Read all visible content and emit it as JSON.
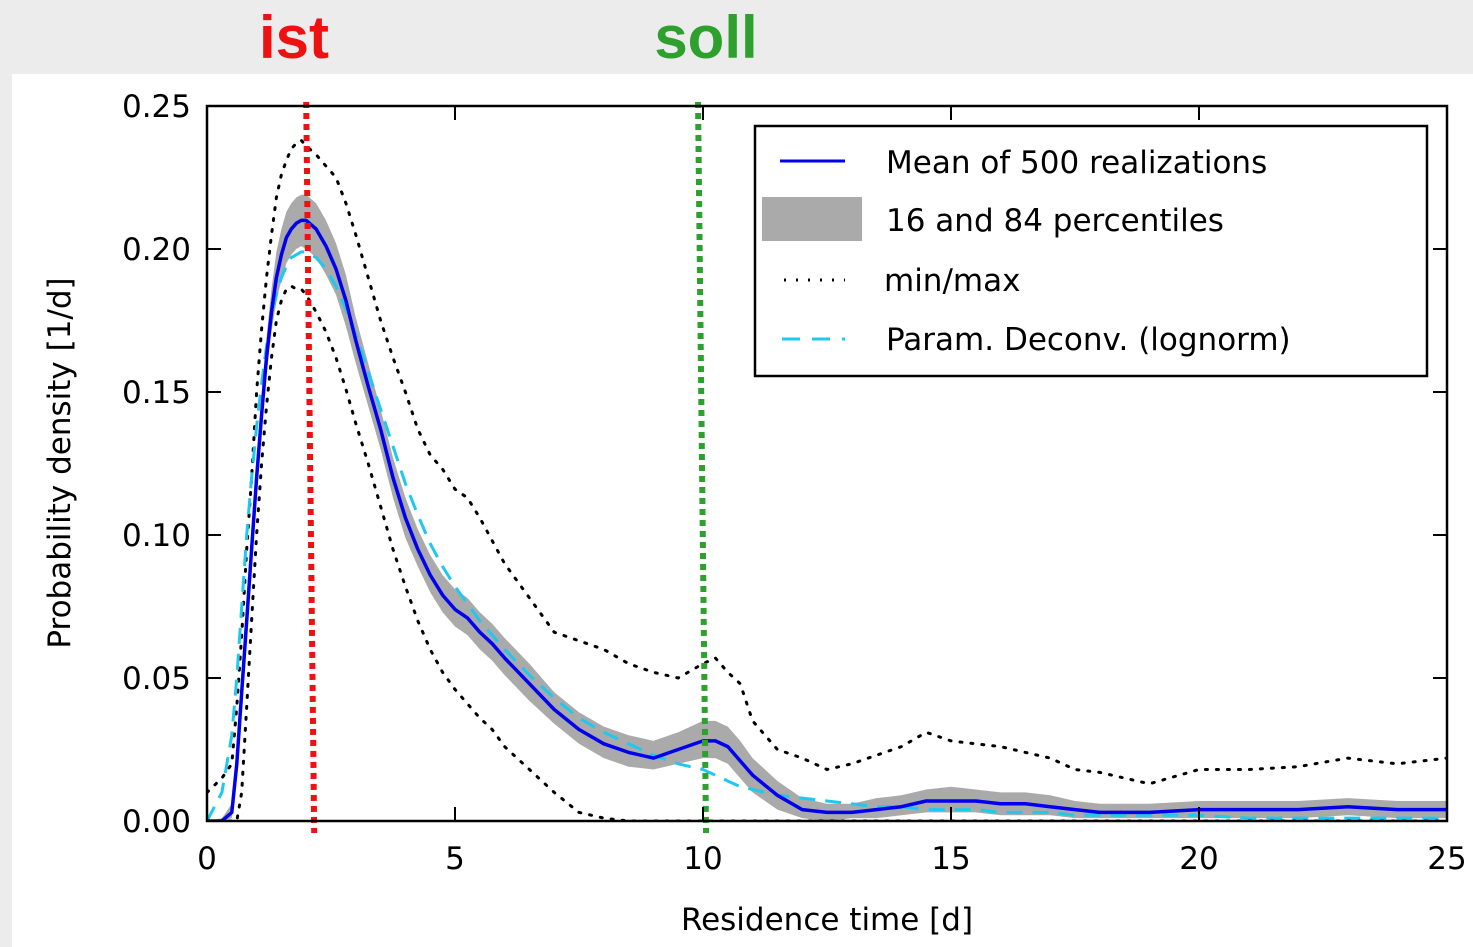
{
  "annotations": [
    {
      "label": "ist",
      "x": 2.0,
      "color": "#ee1111"
    },
    {
      "label": "soll",
      "x": 9.9,
      "color": "#2ea02e"
    }
  ],
  "chart_data": {
    "type": "line",
    "title": "",
    "xlabel": "Residence time [d]",
    "ylabel": "Probability density [1/d]",
    "xlim": [
      0,
      25
    ],
    "ylim": [
      0,
      0.25
    ],
    "x_ticks": [
      0,
      5,
      10,
      15,
      20,
      25
    ],
    "x_tick_labels": [
      "0",
      "5",
      "10",
      "15",
      "20",
      "25"
    ],
    "y_ticks": [
      0,
      0.05,
      0.1,
      0.15,
      0.2,
      0.25
    ],
    "y_tick_labels": [
      "0.00",
      "0.05",
      "0.10",
      "0.15",
      "0.20",
      "0.25"
    ],
    "grid": false,
    "legend_position": "top-right",
    "x": [
      0,
      0.3,
      0.5,
      0.6,
      0.7,
      0.8,
      0.9,
      1.0,
      1.1,
      1.2,
      1.3,
      1.4,
      1.5,
      1.6,
      1.7,
      1.8,
      1.9,
      2.0,
      2.2,
      2.4,
      2.6,
      2.8,
      3.0,
      3.25,
      3.5,
      3.75,
      4.0,
      4.25,
      4.5,
      4.75,
      5.0,
      5.25,
      5.5,
      5.75,
      6.0,
      6.5,
      7.0,
      7.5,
      8.0,
      8.5,
      9.0,
      9.5,
      10.0,
      10.25,
      10.5,
      10.75,
      11.0,
      11.5,
      12.0,
      12.5,
      13.0,
      13.5,
      14.0,
      14.5,
      15.0,
      15.5,
      16.0,
      16.5,
      17.0,
      17.5,
      18.0,
      19.0,
      20.0,
      21.0,
      22.0,
      23.0,
      24.0,
      25.0
    ],
    "series": [
      {
        "name": "Mean of 500 realizations",
        "style": "solid",
        "color": "#0000ee",
        "values": [
          0,
          0,
          0.003,
          0.02,
          0.045,
          0.07,
          0.095,
          0.12,
          0.142,
          0.162,
          0.178,
          0.19,
          0.198,
          0.204,
          0.207,
          0.209,
          0.21,
          0.21,
          0.207,
          0.201,
          0.193,
          0.182,
          0.168,
          0.152,
          0.137,
          0.12,
          0.106,
          0.095,
          0.086,
          0.079,
          0.074,
          0.071,
          0.066,
          0.062,
          0.057,
          0.048,
          0.039,
          0.032,
          0.027,
          0.024,
          0.022,
          0.025,
          0.028,
          0.028,
          0.026,
          0.021,
          0.016,
          0.009,
          0.004,
          0.003,
          0.003,
          0.004,
          0.005,
          0.007,
          0.007,
          0.007,
          0.006,
          0.006,
          0.005,
          0.004,
          0.003,
          0.003,
          0.004,
          0.004,
          0.004,
          0.005,
          0.004,
          0.004
        ]
      },
      {
        "name": "16 and 84 percentiles",
        "style": "band",
        "color": "#aaaaaa",
        "lower": [
          0,
          0,
          0.001,
          0.015,
          0.04,
          0.065,
          0.09,
          0.115,
          0.137,
          0.156,
          0.171,
          0.182,
          0.189,
          0.195,
          0.198,
          0.2,
          0.201,
          0.2,
          0.197,
          0.191,
          0.184,
          0.173,
          0.16,
          0.145,
          0.13,
          0.113,
          0.099,
          0.089,
          0.08,
          0.073,
          0.068,
          0.065,
          0.06,
          0.056,
          0.051,
          0.042,
          0.034,
          0.027,
          0.022,
          0.019,
          0.018,
          0.02,
          0.022,
          0.022,
          0.02,
          0.015,
          0.01,
          0.004,
          0.001,
          0,
          0.001,
          0.001,
          0.002,
          0.003,
          0.003,
          0.003,
          0.002,
          0.002,
          0.002,
          0.001,
          0.001,
          0.001,
          0.001,
          0.001,
          0.001,
          0.002,
          0.001,
          0.001
        ],
        "upper": [
          0,
          0.001,
          0.006,
          0.026,
          0.051,
          0.076,
          0.101,
          0.126,
          0.149,
          0.169,
          0.186,
          0.199,
          0.207,
          0.213,
          0.216,
          0.218,
          0.219,
          0.219,
          0.216,
          0.21,
          0.202,
          0.191,
          0.176,
          0.16,
          0.144,
          0.127,
          0.113,
          0.102,
          0.093,
          0.086,
          0.081,
          0.078,
          0.073,
          0.069,
          0.064,
          0.055,
          0.045,
          0.038,
          0.033,
          0.03,
          0.028,
          0.031,
          0.035,
          0.035,
          0.033,
          0.028,
          0.022,
          0.014,
          0.008,
          0.006,
          0.006,
          0.008,
          0.009,
          0.011,
          0.012,
          0.011,
          0.01,
          0.01,
          0.009,
          0.007,
          0.006,
          0.006,
          0.007,
          0.007,
          0.007,
          0.008,
          0.007,
          0.007
        ]
      },
      {
        "name": "min/max",
        "style": "dotted",
        "color": "#000000",
        "min": [
          0,
          0,
          0,
          0,
          0.01,
          0.04,
          0.07,
          0.1,
          0.125,
          0.145,
          0.162,
          0.175,
          0.182,
          0.186,
          0.187,
          0.186,
          0.186,
          0.184,
          0.178,
          0.171,
          0.162,
          0.151,
          0.139,
          0.125,
          0.11,
          0.095,
          0.082,
          0.07,
          0.06,
          0.052,
          0.046,
          0.041,
          0.036,
          0.032,
          0.026,
          0.018,
          0.01,
          0.003,
          0.001,
          0,
          0,
          0,
          0,
          0,
          0,
          0,
          0,
          0,
          0,
          0,
          0,
          0,
          0,
          0,
          0,
          0,
          0,
          0,
          0,
          0,
          0,
          0,
          0,
          0,
          0,
          0,
          0,
          0
        ],
        "max": [
          0.01,
          0.015,
          0.02,
          0.04,
          0.065,
          0.095,
          0.12,
          0.15,
          0.172,
          0.19,
          0.205,
          0.218,
          0.226,
          0.231,
          0.235,
          0.237,
          0.238,
          0.236,
          0.233,
          0.229,
          0.225,
          0.216,
          0.205,
          0.19,
          0.175,
          0.162,
          0.15,
          0.137,
          0.128,
          0.123,
          0.116,
          0.113,
          0.106,
          0.098,
          0.09,
          0.078,
          0.066,
          0.063,
          0.06,
          0.055,
          0.052,
          0.05,
          0.055,
          0.057,
          0.052,
          0.048,
          0.035,
          0.025,
          0.022,
          0.018,
          0.02,
          0.023,
          0.026,
          0.031,
          0.028,
          0.027,
          0.026,
          0.024,
          0.022,
          0.018,
          0.017,
          0.013,
          0.018,
          0.018,
          0.019,
          0.022,
          0.02,
          0.022
        ]
      },
      {
        "name": "Param. Deconv. (lognorm)",
        "style": "dashed",
        "color": "#1ec8ee",
        "values": [
          0.0,
          0.01,
          0.03,
          0.05,
          0.075,
          0.1,
          0.12,
          0.138,
          0.153,
          0.166,
          0.176,
          0.184,
          0.19,
          0.194,
          0.197,
          0.198,
          0.199,
          0.199,
          0.197,
          0.193,
          0.187,
          0.179,
          0.17,
          0.157,
          0.144,
          0.131,
          0.118,
          0.107,
          0.097,
          0.089,
          0.082,
          0.076,
          0.07,
          0.065,
          0.06,
          0.051,
          0.043,
          0.036,
          0.031,
          0.027,
          0.023,
          0.02,
          0.018,
          0.016,
          0.014,
          0.012,
          0.011,
          0.009,
          0.008,
          0.007,
          0.006,
          0.005,
          0.005,
          0.004,
          0.004,
          0.004,
          0.003,
          0.003,
          0.003,
          0.002,
          0.002,
          0.002,
          0.002,
          0.001,
          0.001,
          0.001,
          0.001,
          0.001
        ]
      }
    ]
  }
}
